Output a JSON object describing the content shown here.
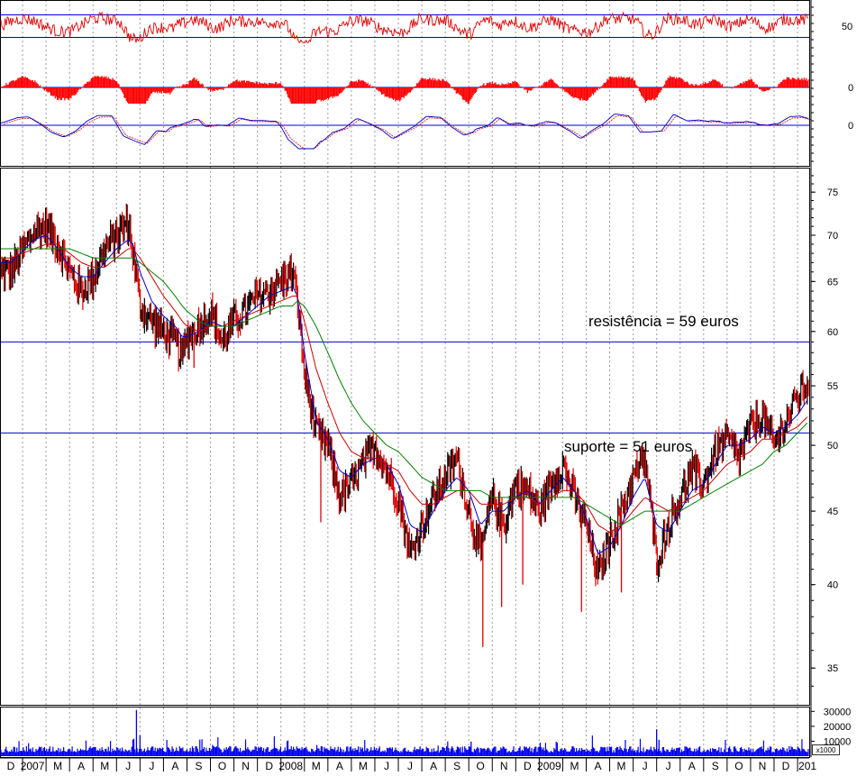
{
  "chart_data": {
    "type": "line",
    "colors": {
      "price_up": "#000000",
      "price_down": "#e00000",
      "ma_short": "#0000cc",
      "ma_medium": "#cc0000",
      "ma_long": "#008000",
      "reference_lines": "#0000cc",
      "volume": "#0000ee",
      "grid": "#999999"
    },
    "x_axis_labels": [
      "D",
      "2007",
      "M",
      "A",
      "M",
      "J",
      "J",
      "A",
      "S",
      "O",
      "N",
      "D",
      "2008",
      "M",
      "A",
      "M",
      "J",
      "J",
      "A",
      "S",
      "O",
      "N",
      "D",
      "2009",
      "M",
      "A",
      "M",
      "J",
      "J",
      "A",
      "S",
      "O",
      "N",
      "D",
      "201"
    ],
    "price_panel": {
      "y_scale": "log",
      "ylim": [
        33,
        78
      ],
      "y_ticks": [
        35,
        40,
        45,
        50,
        55,
        60,
        65,
        70,
        75
      ],
      "price_series": {
        "months": [
          0,
          1,
          1.5,
          2,
          2.5,
          3,
          3.5,
          4,
          4.5,
          5,
          5.2,
          5.5,
          6,
          6.5,
          7,
          7.3,
          7.5,
          8,
          8.5,
          9,
          9.5,
          10,
          10.5,
          11,
          11.5,
          12,
          12.2,
          12.5,
          13,
          13.5,
          14,
          14.5,
          15,
          15.5,
          16,
          16.5,
          17,
          17.5,
          18,
          18.5,
          19,
          19.5,
          20,
          20.5,
          21,
          21.5,
          22,
          22.5,
          23,
          23.5,
          24,
          24.5,
          25,
          25.5,
          26,
          26.5,
          27,
          27.5,
          28,
          28.5,
          29,
          29.5,
          30,
          30.5,
          31,
          31.5,
          32,
          32.5,
          33,
          33.5,
          34,
          34.3
        ],
        "values": [
          66,
          70.5,
          71,
          69,
          66,
          64,
          65.5,
          68.5,
          70,
          71.5,
          68,
          62.5,
          61,
          60,
          59,
          57.5,
          59.5,
          60.5,
          62,
          59,
          61,
          62,
          63.5,
          64,
          65,
          66,
          63,
          56,
          51,
          50,
          46,
          47,
          48.5,
          50,
          48,
          46,
          42,
          44,
          46,
          47.5,
          49,
          45,
          42,
          46,
          44,
          47,
          46.5,
          45,
          47,
          48.5,
          46,
          44,
          40.5,
          43,
          45,
          47.5,
          49,
          41.5,
          44,
          46,
          48,
          47,
          49.5,
          50.5,
          49,
          51.5,
          52.5,
          50,
          52,
          54,
          55.5,
          57
        ]
      },
      "moving_averages": [
        {
          "values": [
            67,
            69.5,
            70,
            68.5,
            66.5,
            65.5,
            65.5,
            67,
            68.5,
            69.5,
            69,
            66,
            63,
            61.5,
            60.5,
            59.5,
            59.5,
            60,
            61,
            60.5,
            60.5,
            61.5,
            62.5,
            63.5,
            64,
            64.5,
            63.5,
            58,
            52,
            50.5,
            48,
            47.5,
            48.5,
            49,
            48.5,
            47,
            44,
            43.5,
            45,
            46.5,
            47.5,
            46.5,
            44,
            45,
            45,
            46,
            46.5,
            45.5,
            46.5,
            47.5,
            46.5,
            44.5,
            42,
            42.5,
            44,
            46,
            47.5,
            44,
            43.5,
            45,
            46.5,
            47,
            48.5,
            50,
            50,
            50.5,
            51.5,
            51,
            51.5,
            52.5,
            54,
            55.5
          ]
        },
        {
          "values": [
            67.5,
            68.5,
            69,
            69,
            68,
            67,
            66.5,
            66.5,
            67.5,
            68.5,
            68.5,
            67.5,
            65.5,
            63.5,
            62,
            61,
            60.5,
            60,
            60.5,
            60.5,
            61,
            61.5,
            62,
            62.5,
            63,
            63.5,
            63.5,
            61,
            56.5,
            53.5,
            51,
            49.5,
            49,
            49,
            48.5,
            48,
            46.5,
            45.5,
            45.5,
            46,
            46.5,
            46.5,
            45.5,
            45.5,
            45.5,
            46,
            46,
            45.5,
            46,
            46.5,
            46.5,
            45.5,
            44,
            43.5,
            44,
            45,
            46,
            45.5,
            45,
            45.5,
            46,
            46.5,
            47.5,
            48.5,
            49,
            49.5,
            50.5,
            50.5,
            51,
            51.5,
            52.5,
            53.5
          ]
        },
        {
          "values": [
            68.5,
            68.5,
            68.5,
            68.5,
            68.5,
            68,
            67.5,
            67.5,
            67.5,
            67.5,
            67.5,
            67,
            66,
            65,
            63.5,
            62.5,
            62,
            61,
            60.5,
            60.5,
            60.5,
            61,
            61.5,
            62,
            62.5,
            62.5,
            63,
            62.5,
            60.5,
            58,
            55.5,
            53.5,
            52,
            51,
            50,
            49.5,
            48.5,
            47.5,
            47,
            46.5,
            46.5,
            46.5,
            46.5,
            46,
            46,
            46,
            46,
            46,
            46,
            46,
            46,
            45.5,
            45,
            44.5,
            44,
            44.5,
            45,
            45,
            45,
            45,
            45.5,
            46,
            46.5,
            47,
            47.5,
            48,
            48.5,
            49.5,
            50,
            51,
            52,
            52.5
          ]
        }
      ],
      "reference_lines": [
        59,
        51
      ],
      "annotations": [
        "resistência = 59 euros",
        "suporte = 51 euros"
      ]
    },
    "rsi_panel": {
      "y_ticks": [
        50
      ],
      "reference_lines": [
        65,
        35
      ]
    },
    "histogram_panel": {
      "y_ticks": [
        0
      ]
    },
    "oscillator_panel": {
      "y_ticks": [
        0
      ]
    },
    "volume_panel": {
      "unit_label": "x1000",
      "y_ticks": [
        30000,
        20000,
        10000
      ],
      "y_tick_labels": [
        "30000",
        "20000",
        "10000"
      ]
    }
  }
}
